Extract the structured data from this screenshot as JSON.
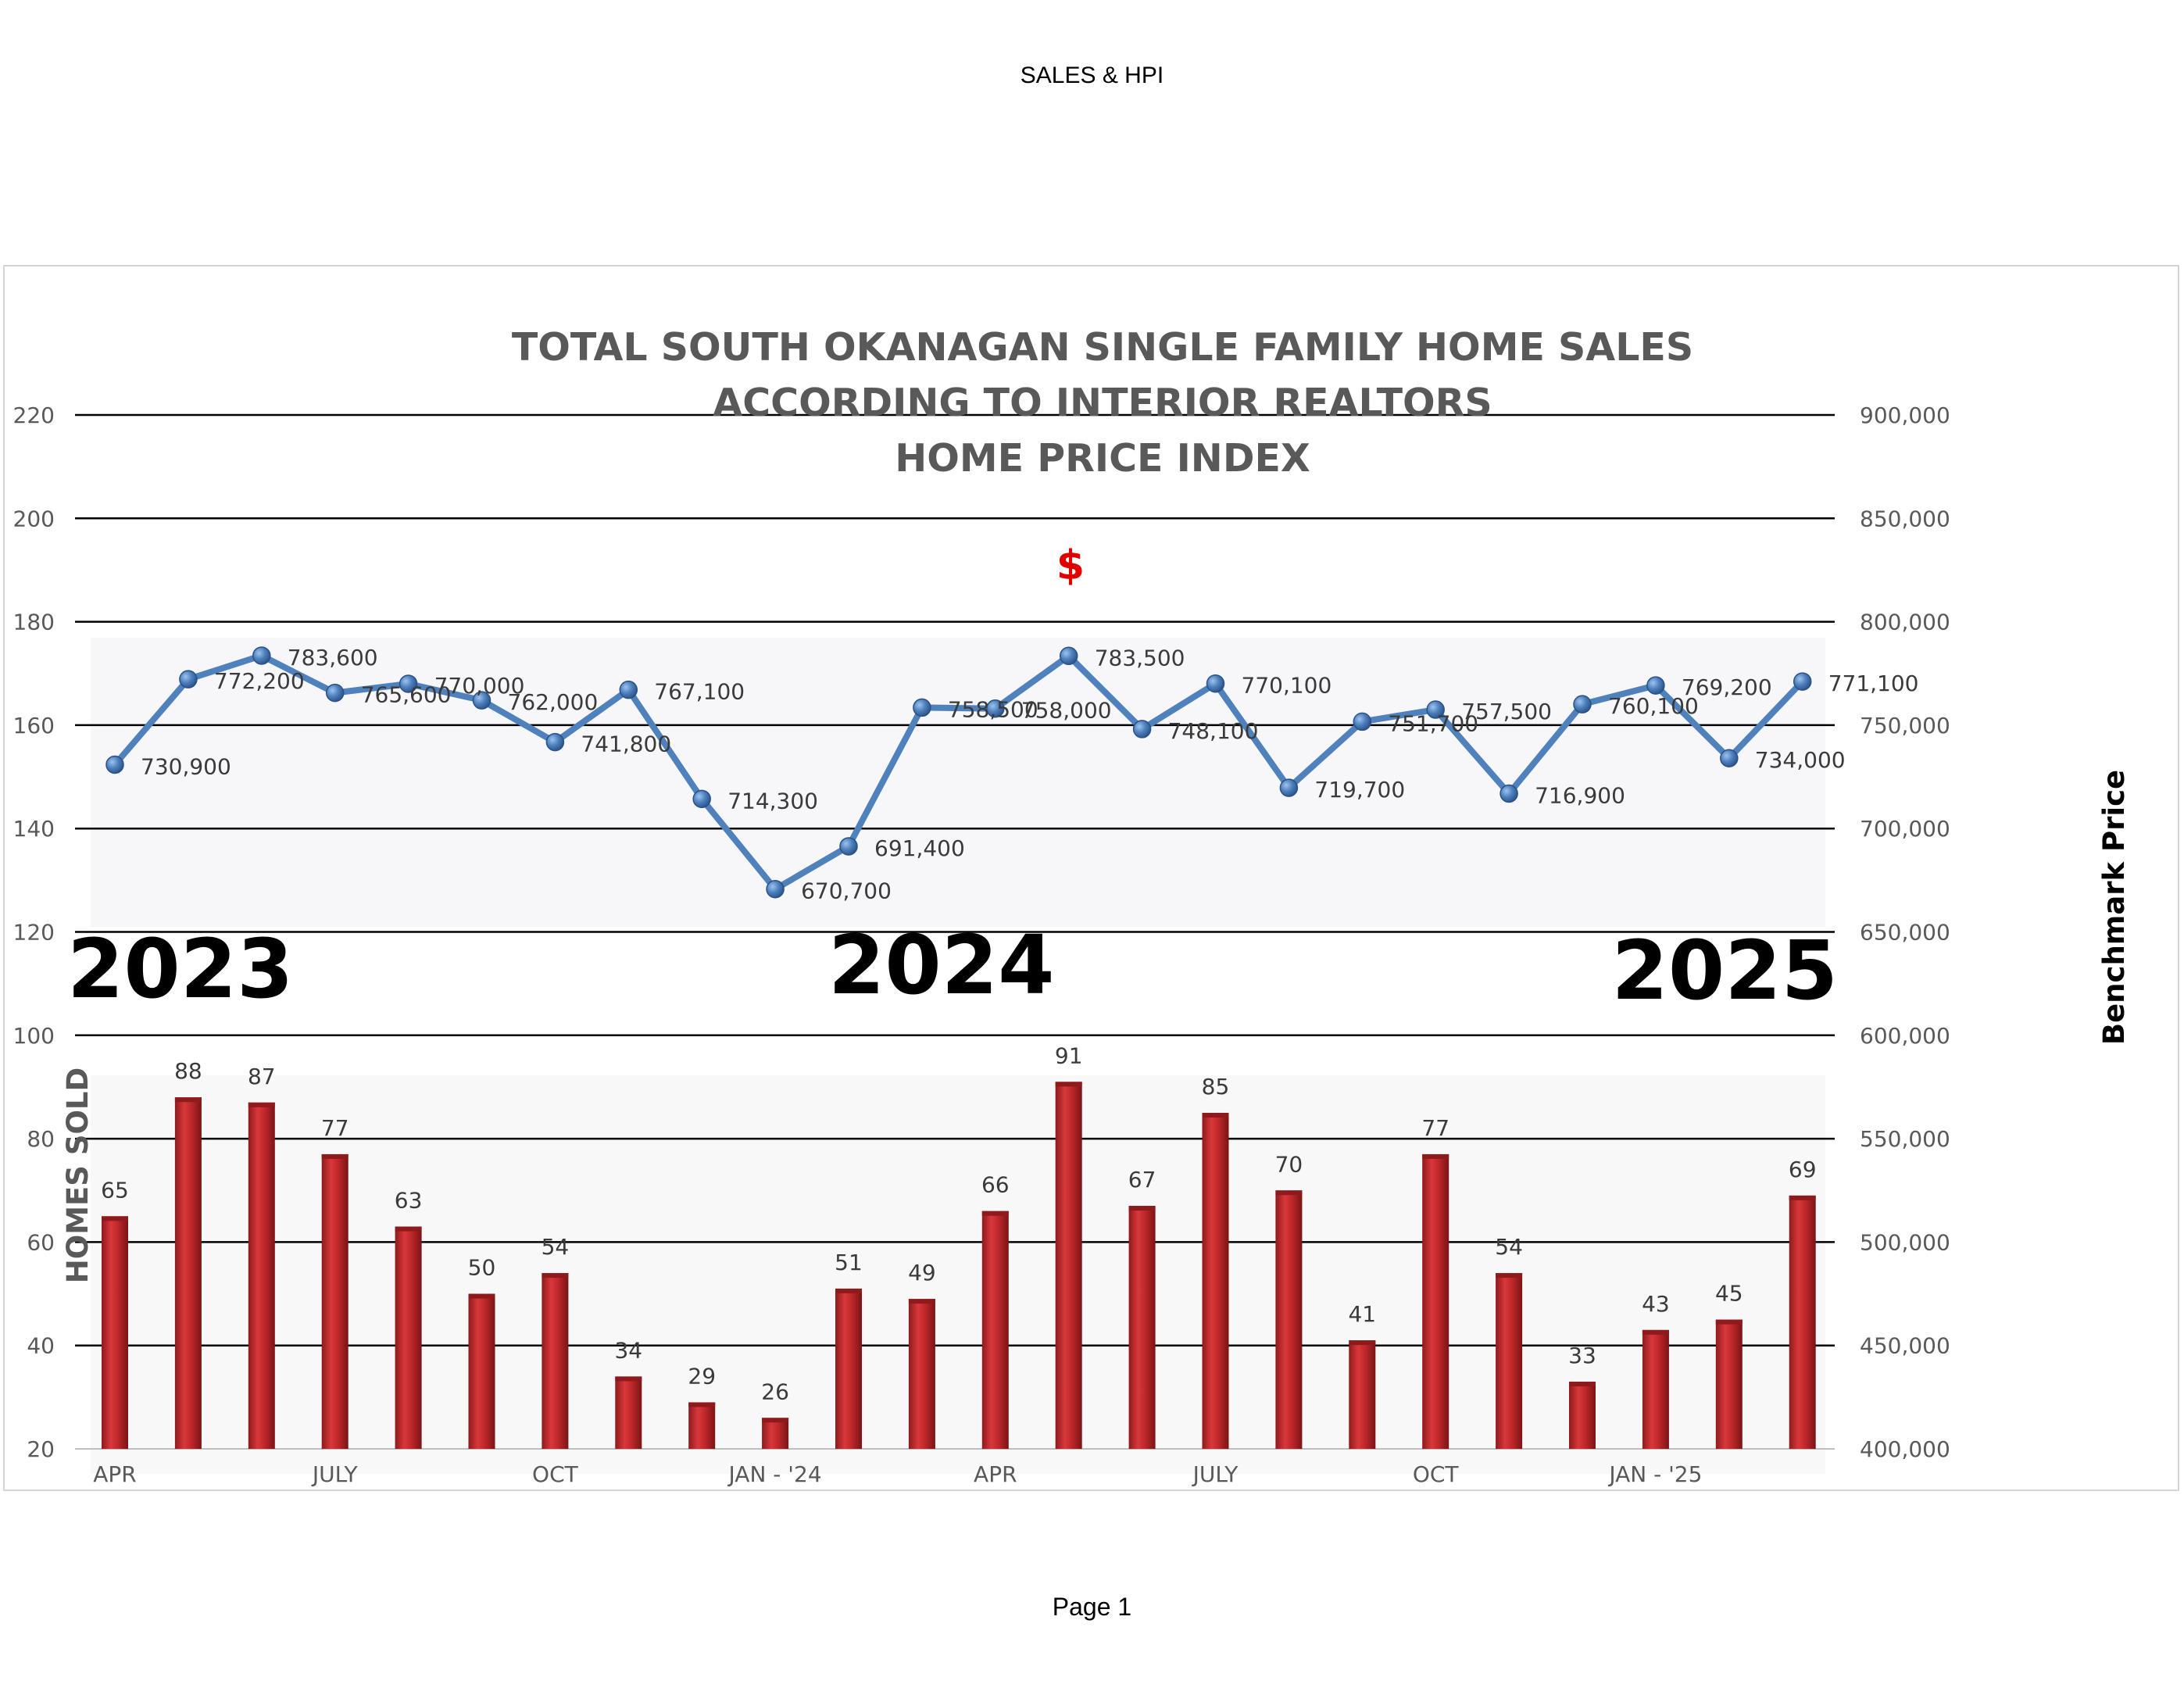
{
  "page": {
    "header": "SALES & HPI",
    "footer": "Page 1"
  },
  "chart_data": {
    "type": "bar+line",
    "title": [
      "TOTAL SOUTH OKANAGAN SINGLE FAMILY HOME SALES",
      "ACCORDING TO INTERIOR REALTORS",
      "HOME PRICE INDEX"
    ],
    "currency_symbol": "$",
    "left_axis": {
      "label": "HOMES SOLD",
      "ylim": [
        20,
        220
      ],
      "ticks": [
        "20",
        "40",
        "60",
        "80",
        "100",
        "120",
        "140",
        "160",
        "180",
        "200",
        "220"
      ]
    },
    "right_axis": {
      "label": "Benchmark Price",
      "ylim": [
        400000,
        900000
      ],
      "ticks": [
        "400,000",
        "450,000",
        "500,000",
        "550,000",
        "600,000",
        "650,000",
        "700,000",
        "750,000",
        "800,000",
        "850,000",
        "900,000"
      ]
    },
    "x_tick_labels": [
      "APR",
      "",
      "",
      "JULY",
      "",
      "",
      "OCT",
      "",
      "",
      "JAN - '24",
      "",
      "",
      "APR",
      "",
      "",
      "JULY",
      "",
      "",
      "OCT",
      "",
      "",
      "JAN - '25",
      "",
      ""
    ],
    "year_labels": [
      "2023",
      "2024",
      "2025"
    ],
    "series": [
      {
        "name": "Homes Sold",
        "type": "bar",
        "axis": "left",
        "color": "#c0282b",
        "values": [
          65,
          88,
          87,
          77,
          63,
          50,
          54,
          34,
          29,
          26,
          51,
          49,
          66,
          91,
          67,
          85,
          70,
          41,
          77,
          54,
          33,
          43,
          45,
          69
        ],
        "labels": [
          "65",
          "88",
          "87",
          "77",
          "63",
          "50",
          "54",
          "34",
          "29",
          "26",
          "51",
          "49",
          "66",
          "91",
          "67",
          "85",
          "70",
          "41",
          "77",
          "54",
          "33",
          "43",
          "45",
          "69"
        ]
      },
      {
        "name": "Benchmark Price",
        "type": "line",
        "axis": "right",
        "color": "#4f81bd",
        "values": [
          730900,
          772200,
          783600,
          765600,
          770000,
          762000,
          741800,
          767100,
          714300,
          670700,
          691400,
          758500,
          758000,
          783500,
          748100,
          770100,
          719700,
          751700,
          757500,
          716900,
          760100,
          769200,
          734000,
          771100
        ],
        "labels": [
          "730,900",
          "772,200",
          "783,600",
          "765,600",
          "770,000",
          "762,000",
          "741,800",
          "767,100",
          "714,300",
          "670,700",
          "691,400",
          "758,500",
          "758,000",
          "783,500",
          "748,100",
          "770,100",
          "719,700",
          "751,700",
          "757,500",
          "716,900",
          "760,100",
          "769,200",
          "734,000",
          "771,100"
        ]
      }
    ]
  },
  "colors": {
    "bar": "#c0282b",
    "bar_dark": "#8e1a1c",
    "line": "#4f81bd",
    "dollar": "#e00000",
    "grid": "#000000",
    "title": "#595959"
  }
}
